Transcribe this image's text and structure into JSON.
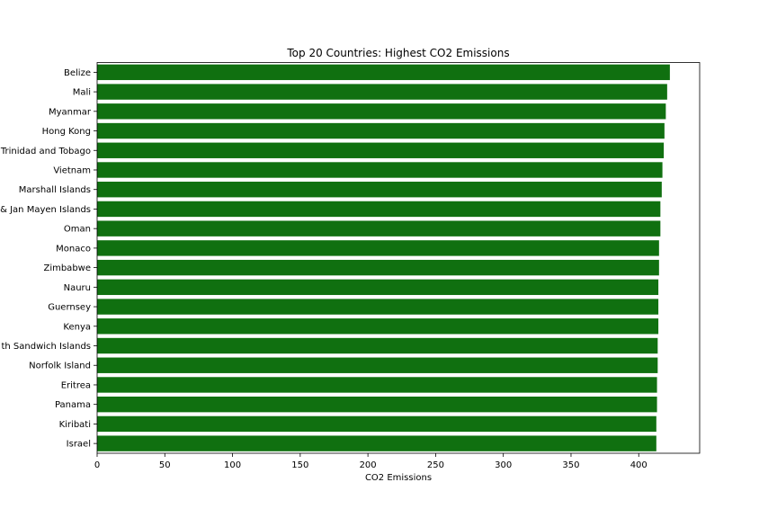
{
  "chart_data": {
    "type": "bar",
    "orientation": "horizontal",
    "title": "Top 20 Countries: Highest CO2 Emissions",
    "xlabel": "CO2 Emissions",
    "ylabel": "",
    "bar_color": "#107010",
    "grid": false,
    "legend": "none",
    "xlim": [
      0,
      445
    ],
    "xticks": [
      0,
      50,
      100,
      150,
      200,
      250,
      300,
      350,
      400
    ],
    "categories": [
      "Belize",
      "Mali",
      "Myanmar",
      "Hong Kong",
      "Trinidad and Tobago",
      "Vietnam",
      "Marshall Islands",
      "& Jan Mayen Islands",
      "Oman",
      "Monaco",
      "Zimbabwe",
      "Nauru",
      "Guernsey",
      "Kenya",
      "th Sandwich Islands",
      "Norfolk Island",
      "Eritrea",
      "Panama",
      "Kiribati",
      "Israel"
    ],
    "values": [
      423,
      421,
      420,
      419,
      418.5,
      417.5,
      417,
      416,
      416,
      415,
      415,
      414.5,
      414.5,
      414.5,
      414,
      414,
      413.5,
      413.5,
      413,
      413
    ]
  }
}
